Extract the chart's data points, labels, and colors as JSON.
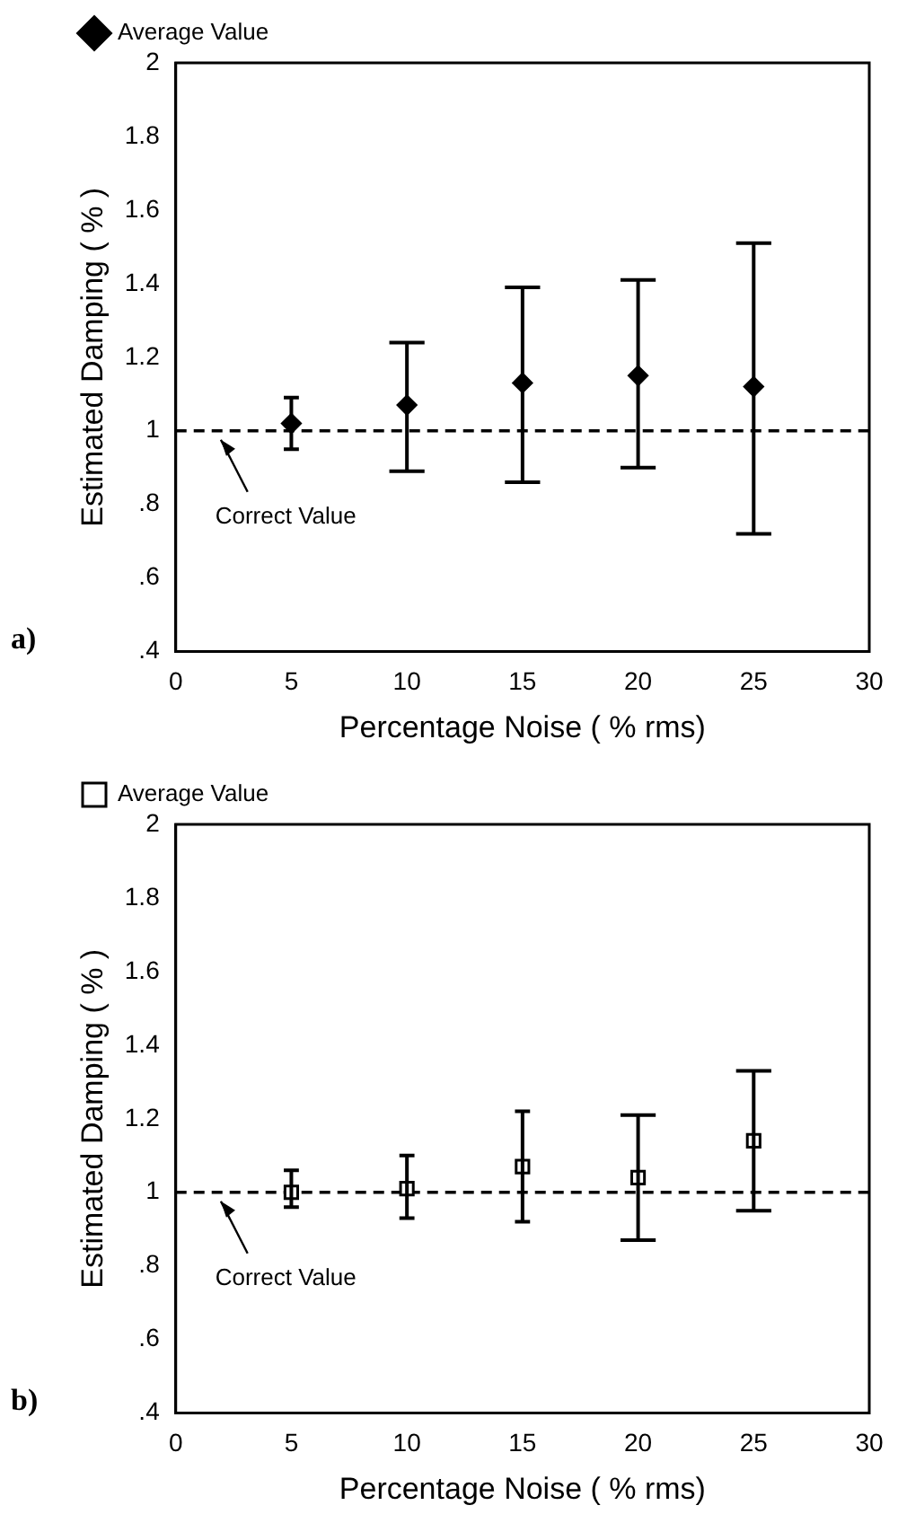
{
  "chart_data": [
    {
      "type": "scatter",
      "title": "a)",
      "xlabel": "Percentage Noise ( % rms)",
      "ylabel": "Estimated Damping ( % )",
      "x": [
        5,
        10,
        15,
        20,
        25
      ],
      "series": [
        {
          "name": "Average Value",
          "color": "#000000",
          "values": [
            1.02,
            1.07,
            1.13,
            1.15,
            1.12
          ],
          "errors": [
            [
              0.95,
              1.09
            ],
            [
              0.89,
              1.24
            ],
            [
              0.86,
              1.39
            ],
            [
              0.9,
              1.41
            ],
            [
              0.72,
              1.51
            ]
          ]
        }
      ],
      "marker": "diamond",
      "legend": "top",
      "grid": false,
      "xlim": [
        0,
        30
      ],
      "xticks": [
        0,
        5,
        10,
        15,
        20,
        25,
        30
      ],
      "ylim": [
        0.4,
        2
      ],
      "yticks": [
        {
          "value": 0.4,
          "label": ".4"
        },
        {
          "value": 0.6,
          "label": ".6"
        },
        {
          "value": 0.8,
          "label": ".8"
        },
        1,
        1.2,
        1.4,
        1.6,
        1.8,
        2
      ],
      "ref_lines": [
        {
          "axis": "y",
          "value": 1,
          "label": "Correct Value",
          "line_style": "dashed",
          "color": "#000000"
        }
      ]
    },
    {
      "type": "scatter",
      "title": "b)",
      "xlabel": "Percentage Noise ( % rms)",
      "ylabel": "Estimated Damping ( % )",
      "x": [
        5,
        10,
        15,
        20,
        25
      ],
      "series": [
        {
          "name": "Average Value",
          "color": "#000000",
          "values": [
            1.0,
            1.01,
            1.07,
            1.04,
            1.14
          ],
          "errors": [
            [
              0.96,
              1.06
            ],
            [
              0.93,
              1.1
            ],
            [
              0.92,
              1.22
            ],
            [
              0.87,
              1.21
            ],
            [
              0.95,
              1.33
            ]
          ]
        }
      ],
      "marker": "square",
      "legend": "top",
      "grid": false,
      "xlim": [
        0,
        30
      ],
      "xticks": [
        0,
        5,
        10,
        15,
        20,
        25,
        30
      ],
      "ylim": [
        0.4,
        2
      ],
      "yticks": [
        {
          "value": 0.4,
          "label": ".4"
        },
        {
          "value": 0.6,
          "label": ".6"
        },
        {
          "value": 0.8,
          "label": ".8"
        },
        1,
        1.2,
        1.4,
        1.6,
        1.8,
        2
      ],
      "ref_lines": [
        {
          "axis": "y",
          "value": 1,
          "label": "Correct Value",
          "line_style": "dashed",
          "color": "#000000"
        }
      ]
    }
  ]
}
